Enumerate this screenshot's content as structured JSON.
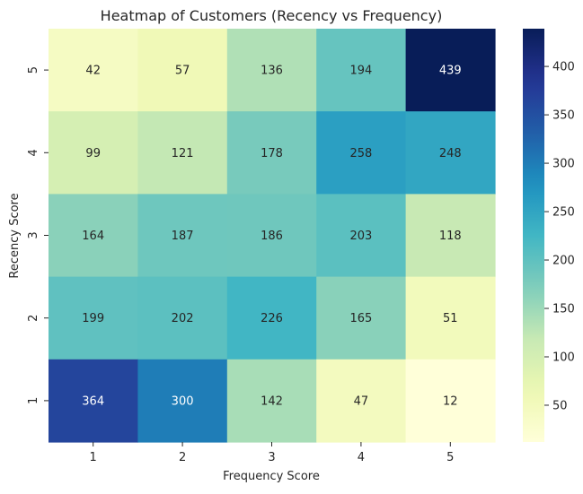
{
  "chart_data": {
    "type": "heatmap",
    "title": "Heatmap of Customers (Recency vs Frequency)",
    "xlabel": "Frequency Score",
    "ylabel": "Recency Score",
    "x_categories": [
      "1",
      "2",
      "3",
      "4",
      "5"
    ],
    "y_categories": [
      "5",
      "4",
      "3",
      "2",
      "1"
    ],
    "values": [
      [
        42,
        57,
        136,
        194,
        439
      ],
      [
        99,
        121,
        178,
        258,
        248
      ],
      [
        164,
        187,
        186,
        203,
        118
      ],
      [
        199,
        202,
        226,
        165,
        51
      ],
      [
        364,
        300,
        142,
        47,
        12
      ]
    ],
    "colormap": "YlGnBu",
    "colorbar": {
      "min": 12,
      "max": 439,
      "ticks": [
        50,
        100,
        150,
        200,
        250,
        300,
        350,
        400
      ]
    },
    "annotation_colors": {
      "dark_text": "#262626",
      "light_text": "#ffffff"
    }
  }
}
